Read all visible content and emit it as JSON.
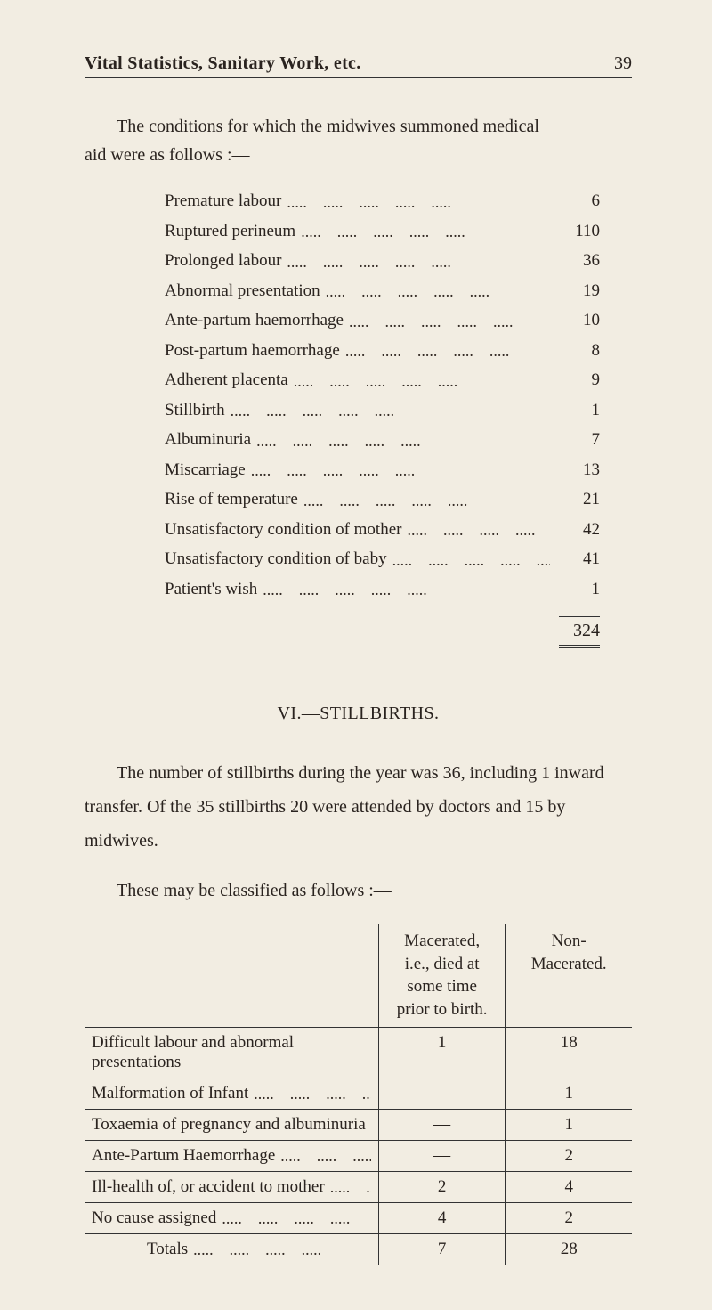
{
  "page": {
    "runningTitle": "Vital Statistics, Sanitary Work, etc.",
    "pageNumber": "39"
  },
  "intro": {
    "line1Indent": "The conditions for which the midwives summoned medical",
    "line2": "aid were as follows :—"
  },
  "conditions": {
    "items": [
      {
        "label": "Premature labour",
        "value": "6"
      },
      {
        "label": "Ruptured perineum",
        "value": "110"
      },
      {
        "label": "Prolonged labour",
        "value": "36"
      },
      {
        "label": "Abnormal presentation",
        "value": "19"
      },
      {
        "label": "Ante-partum haemorrhage",
        "value": "10"
      },
      {
        "label": "Post-partum haemorrhage",
        "value": "8"
      },
      {
        "label": "Adherent placenta",
        "value": "9"
      },
      {
        "label": "Stillbirth",
        "value": "1"
      },
      {
        "label": "Albuminuria",
        "value": "7"
      },
      {
        "label": "Miscarriage",
        "value": "13"
      },
      {
        "label": "Rise of temperature",
        "value": "21"
      },
      {
        "label": "Unsatisfactory condition of mother",
        "value": "42"
      },
      {
        "label": "Unsatisfactory condition of baby",
        "value": "41"
      },
      {
        "label": "Patient's wish",
        "value": "1"
      }
    ],
    "total": "324"
  },
  "stillbirths": {
    "heading": "VI.—STILLBIRTHS.",
    "para1": "The number of stillbirths during the year was 36, including 1 inward transfer.    Of the 35 stillbirths 20 were attended by doctors and 15 by midwives.",
    "para2": "These may be classified as follows :—"
  },
  "classification": {
    "columns": {
      "c0": "",
      "c1": "Macerated,\ni.e., died at\nsome time\nprior to birth.",
      "c2": "Non-\nMacerated."
    },
    "rows": [
      {
        "label": "Difficult labour and abnormal presentations",
        "mac": "1",
        "non": "18"
      },
      {
        "label": "Malformation of Infant",
        "mac": "—",
        "non": "1"
      },
      {
        "label": "Toxaemia of pregnancy and albuminuria",
        "mac": "—",
        "non": "1"
      },
      {
        "label": "Ante-Partum Haemorrhage",
        "mac": "—",
        "non": "2"
      },
      {
        "label": "Ill-health of, or accident to mother",
        "mac": "2",
        "non": "4"
      },
      {
        "label": "No cause assigned",
        "mac": "4",
        "non": "2"
      }
    ],
    "totals": {
      "label": "Totals",
      "mac": "7",
      "non": "28"
    }
  },
  "style": {
    "backgroundColor": "#f2ede2",
    "textColor": "#2a231f",
    "ruleColor": "#333333",
    "fontFamily": "Georgia, Times New Roman, serif",
    "bodyFontSizePt": 14,
    "headerFontSizePt": 15,
    "tableColWidthsPx": [
      null,
      155,
      155
    ],
    "pageWidthPx": 800,
    "pageHeightPx": 1416
  }
}
